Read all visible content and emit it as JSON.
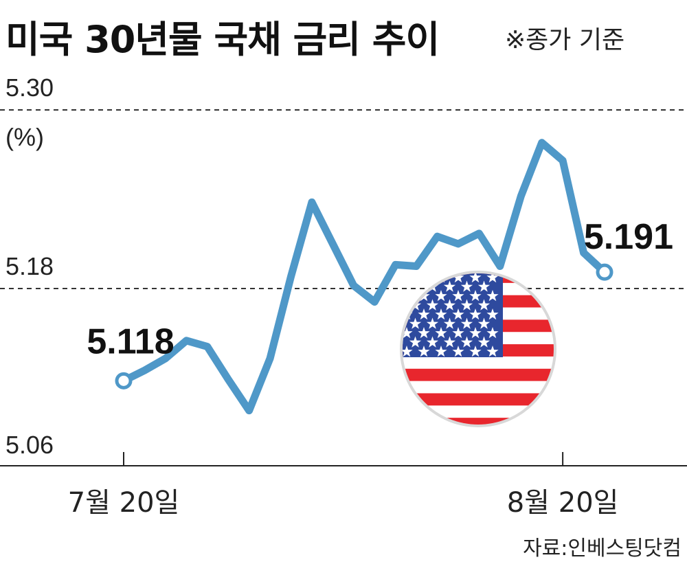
{
  "chart_data": {
    "type": "line",
    "title": "미국 30년물 국채 금리 추이",
    "subtitle": "※종가 기준",
    "unit": "(%)",
    "source": "자료:인베스팅닷컴",
    "ylim": [
      5.06,
      5.3
    ],
    "y_ticks": [
      "5.30",
      "5.18",
      "5.06"
    ],
    "gridlines": [
      5.3,
      5.18
    ],
    "x_tick_labels": [
      {
        "label": "7월 20일",
        "index": 0
      },
      {
        "label": "8월 20일",
        "index": 21
      }
    ],
    "series": [
      {
        "values": [
          5.118,
          5.125,
          5.133,
          5.145,
          5.141,
          5.119,
          5.098,
          5.133,
          5.188,
          5.238,
          5.21,
          5.182,
          5.171,
          5.196,
          5.195,
          5.215,
          5.21,
          5.217,
          5.195,
          5.242,
          5.278,
          5.266,
          5.204,
          5.191
        ],
        "color": "#4f98c8"
      }
    ],
    "data_labels": [
      {
        "index": 0,
        "text": "5.118"
      },
      {
        "index": 23,
        "text": "5.191"
      }
    ]
  },
  "decoration": {
    "flag_icon": "us-flag-icon",
    "flag_colors": {
      "blue": "#2e4a9e",
      "red": "#e8262d",
      "white": "#ffffff"
    }
  }
}
